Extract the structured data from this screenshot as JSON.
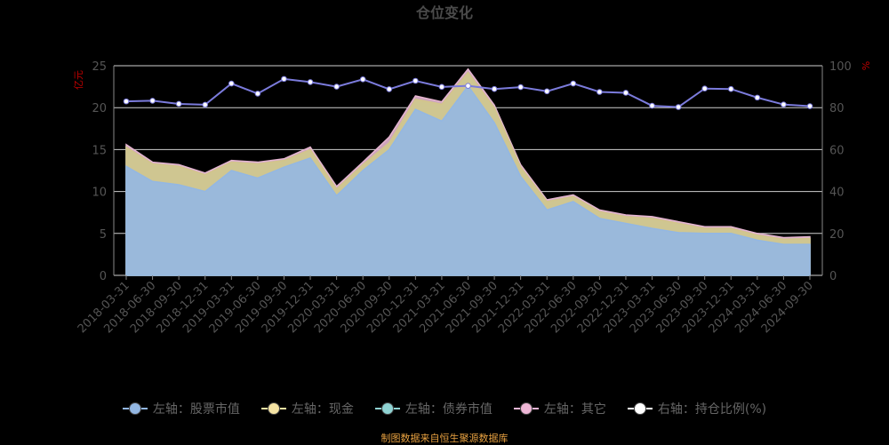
{
  "chart_data": {
    "type": "area",
    "title": "仓位变化",
    "left_axis_label": "亿元",
    "right_axis_label": "%",
    "left_ylim": [
      0,
      25
    ],
    "left_yticks": [
      0,
      5,
      10,
      15,
      20,
      25
    ],
    "right_ylim": [
      0,
      100
    ],
    "right_yticks": [
      0,
      20,
      40,
      60,
      80,
      100
    ],
    "x": [
      "2018-03-31",
      "2018-06-30",
      "2018-09-30",
      "2018-12-31",
      "2019-03-31",
      "2019-06-30",
      "2019-09-30",
      "2019-12-31",
      "2020-03-31",
      "2020-06-30",
      "2020-09-30",
      "2020-12-31",
      "2021-03-31",
      "2021-06-30",
      "2021-09-30",
      "2021-12-31",
      "2022-03-31",
      "2022-06-30",
      "2022-09-30",
      "2022-12-31",
      "2023-03-31",
      "2023-06-30",
      "2023-09-30",
      "2023-12-31",
      "2024-03-31",
      "2024-06-30",
      "2024-09-30"
    ],
    "series": [
      {
        "name": "左轴：股票市值",
        "axis": "left",
        "color": "#93b7e3",
        "values": [
          13.0,
          11.2,
          10.8,
          10.0,
          12.5,
          11.6,
          12.9,
          14.0,
          9.5,
          12.5,
          15.0,
          19.8,
          18.4,
          22.6,
          18.2,
          11.8,
          7.8,
          8.8,
          6.8,
          6.2,
          5.6,
          5.1,
          5.0,
          5.0,
          4.2,
          3.7,
          3.7
        ]
      },
      {
        "name": "左轴：现金",
        "axis": "left",
        "color": "#d4c48a",
        "values": [
          2.3,
          2.1,
          2.2,
          2.0,
          1.0,
          1.7,
          0.8,
          1.0,
          0.8,
          0.7,
          0.8,
          1.2,
          2.0,
          1.6,
          1.8,
          1.1,
          1.0,
          0.6,
          0.8,
          0.8,
          1.2,
          1.1,
          0.6,
          0.6,
          0.6,
          0.6,
          0.7
        ]
      },
      {
        "name": "左轴：债券市值",
        "axis": "left",
        "color": "#a0d9d9",
        "values": [
          0,
          0,
          0,
          0,
          0,
          0,
          0,
          0,
          0,
          0,
          0,
          0,
          0,
          0,
          0,
          0,
          0,
          0,
          0,
          0,
          0,
          0,
          0,
          0,
          0,
          0,
          0
        ]
      },
      {
        "name": "左轴：其它",
        "axis": "left",
        "color": "#e5b5d0",
        "values": [
          0.3,
          0.2,
          0.2,
          0.2,
          0.2,
          0.2,
          0.2,
          0.3,
          0.3,
          0.3,
          0.7,
          0.4,
          0.3,
          0.4,
          0.3,
          0.3,
          0.2,
          0.2,
          0.2,
          0.2,
          0.2,
          0.2,
          0.2,
          0.2,
          0.2,
          0.2,
          0.2
        ]
      },
      {
        "name": "右轴：持仓比例(%)",
        "axis": "right",
        "color": "#7b7bdc",
        "values": [
          83,
          83.3,
          81.8,
          81.4,
          91.5,
          86.7,
          93.7,
          92.2,
          90,
          93.5,
          88.8,
          92.8,
          89.9,
          90.4,
          88.9,
          89.8,
          87.8,
          91.5,
          87.5,
          87.1,
          80.9,
          80.3,
          89.1,
          88.9,
          84.8,
          81.5,
          80.7
        ]
      }
    ],
    "grid": true,
    "legend_position": "bottom"
  },
  "legend": [
    {
      "label": "左轴：股票市值",
      "color": "#93b7e3"
    },
    {
      "label": "左轴：现金",
      "color": "#f5e3a3"
    },
    {
      "label": "左轴：债券市值",
      "color": "#8fd3d3"
    },
    {
      "label": "左轴：其它",
      "color": "#eeb6d6"
    },
    {
      "label": "右轴：持仓比例(%)",
      "color": "#ffffff"
    }
  ],
  "source_note": "制图数据来自恒生聚源数据库"
}
